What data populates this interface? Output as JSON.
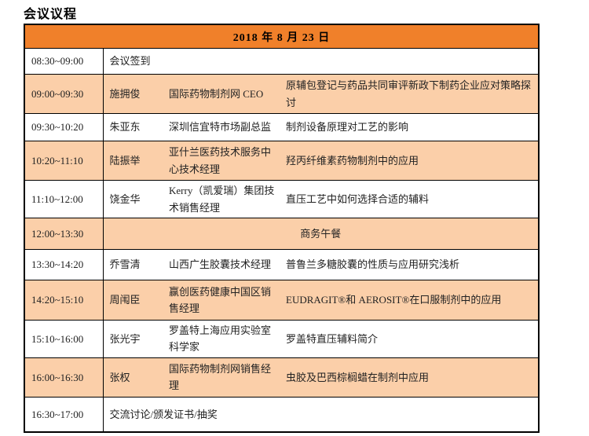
{
  "page_title": "会议议程",
  "colors": {
    "header_bg": "#F0802A",
    "shaded_row_bg": "#FBCFA9",
    "border": "#000000"
  },
  "table": {
    "date_header": "2018 年 8 月 23 日",
    "rows": [
      {
        "time": "08:30~09:00",
        "merged": "会议签到"
      },
      {
        "time": "09:00~09:30",
        "name": "施拥俊",
        "title": "国际药物制剂网 CEO",
        "topic": "原辅包登记与药品共同审评新政下制药企业应对策略探讨"
      },
      {
        "time": "09:30~10:20",
        "name": "朱亚东",
        "title": "深圳信宜特市场副总监",
        "topic": "制剂设备原理对工艺的影响"
      },
      {
        "time": "10:20~11:10",
        "name": "陆振举",
        "title": "亚什兰医药技术服务中心技术经理",
        "topic": "羟丙纤维素药物制剂中的应用"
      },
      {
        "time": "11:10~12:00",
        "name": "饶金华",
        "title": "Kerry（凯爱瑞）集团技术销售经理",
        "topic": "直压工艺中如何选择合适的辅料"
      },
      {
        "time": "12:00~13:30",
        "merged": "商务午餐"
      },
      {
        "time": "13:30~14:20",
        "name": "乔雪清",
        "title": "山西广生胶囊技术经理",
        "topic": "普鲁兰多糖胶囊的性质与应用研究浅析"
      },
      {
        "time": "14:20~15:10",
        "name": "周闱臣",
        "title": "赢创医药健康中国区销售经理",
        "topic": "EUDRAGIT®和 AEROSIT®在口服制剂中的应用"
      },
      {
        "time": "15:10~16:00",
        "name": "张光宇",
        "title": "罗盖特上海应用实验室科学家",
        "topic": "罗盖特直压辅料简介"
      },
      {
        "time": "16:00~16:30",
        "name": "张权",
        "title": "国际药物制剂网销售经理",
        "topic": "虫胶及巴西棕榈蜡在制剂中应用"
      },
      {
        "time": "16:30~17:00",
        "merged": "交流讨论/颁发证书/抽奖"
      }
    ]
  }
}
